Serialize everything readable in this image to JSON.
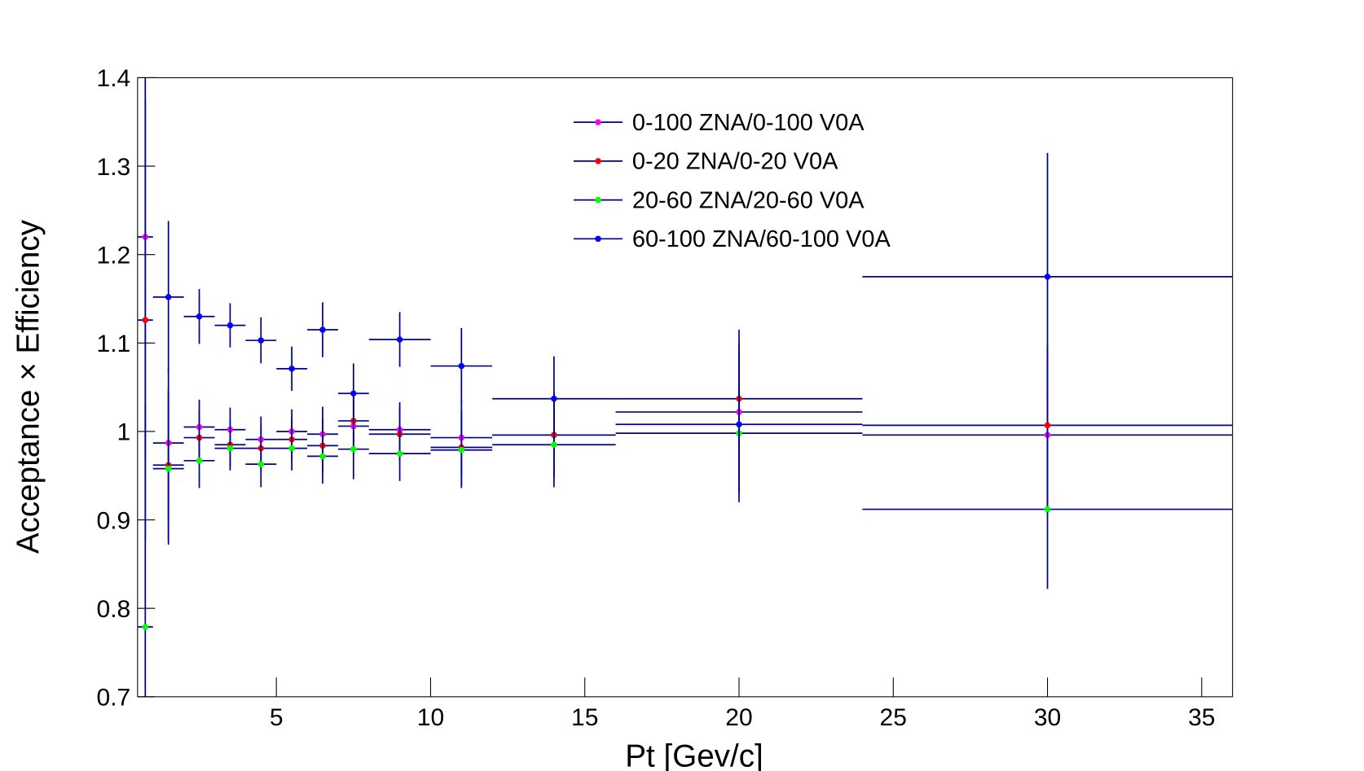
{
  "chart_data": {
    "type": "errorbar",
    "x_label": "Pt [Gev/c]",
    "y_label": "Acceptance × Efficiency",
    "bins": [
      0.5,
      1,
      2,
      3,
      4,
      5,
      6,
      7,
      8,
      10,
      12,
      16,
      24,
      36
    ],
    "x": [
      0.75,
      1.5,
      2.5,
      3.5,
      4.5,
      5.5,
      6.5,
      7.5,
      9,
      11,
      14,
      20,
      30
    ],
    "xlim": [
      0.5,
      36
    ],
    "xticks": [
      5,
      10,
      15,
      20,
      25,
      30,
      35
    ],
    "ylim": [
      0.7,
      1.4
    ],
    "yticks": [
      0.7,
      0.8,
      0.9,
      1,
      1.1,
      1.2,
      1.3,
      1.4
    ],
    "line_color": "#00008b",
    "legend": "top-center",
    "series": [
      {
        "name": "0-100 ZNA/0-100 V0A",
        "color": "#ff00ff",
        "values": [
          1.22,
          0.987,
          1.005,
          1.002,
          0.991,
          1.0,
          0.997,
          1.006,
          1.002,
          0.993,
          0.996,
          1.022,
          0.996
        ],
        "errors": [
          0.25,
          0.086,
          0.031,
          0.025,
          0.026,
          0.025,
          0.031,
          0.034,
          0.031,
          0.043,
          0.048,
          0.078,
          0.09
        ]
      },
      {
        "name": "0-20 ZNA/0-20 V0A",
        "color": "#ff0000",
        "values": [
          1.126,
          0.962,
          0.993,
          0.985,
          0.981,
          0.991,
          0.984,
          1.012,
          0.997,
          0.982,
          0.996,
          1.037,
          1.007
        ],
        "errors": [
          0.25,
          0.086,
          0.031,
          0.025,
          0.026,
          0.025,
          0.031,
          0.034,
          0.031,
          0.043,
          0.048,
          0.078,
          0.09
        ]
      },
      {
        "name": "20-60 ZNA/20-60 V0A",
        "color": "#00ff00",
        "values": [
          0.779,
          0.958,
          0.967,
          0.981,
          0.963,
          0.981,
          0.972,
          0.98,
          0.975,
          0.979,
          0.985,
          0.998,
          0.912
        ],
        "errors": [
          0.25,
          0.086,
          0.031,
          0.025,
          0.026,
          0.025,
          0.031,
          0.034,
          0.031,
          0.043,
          0.048,
          0.078,
          0.09
        ]
      },
      {
        "name": "60-100 ZNA/60-100 V0A",
        "color": "#0000ff",
        "values": [
          null,
          1.152,
          1.13,
          1.12,
          1.103,
          1.071,
          1.115,
          1.043,
          1.104,
          1.074,
          1.037,
          1.008,
          1.175
        ],
        "errors": [
          null,
          0.086,
          0.031,
          0.025,
          0.026,
          0.025,
          0.031,
          0.034,
          0.031,
          0.043,
          0.048,
          0.078,
          0.14
        ]
      }
    ]
  }
}
